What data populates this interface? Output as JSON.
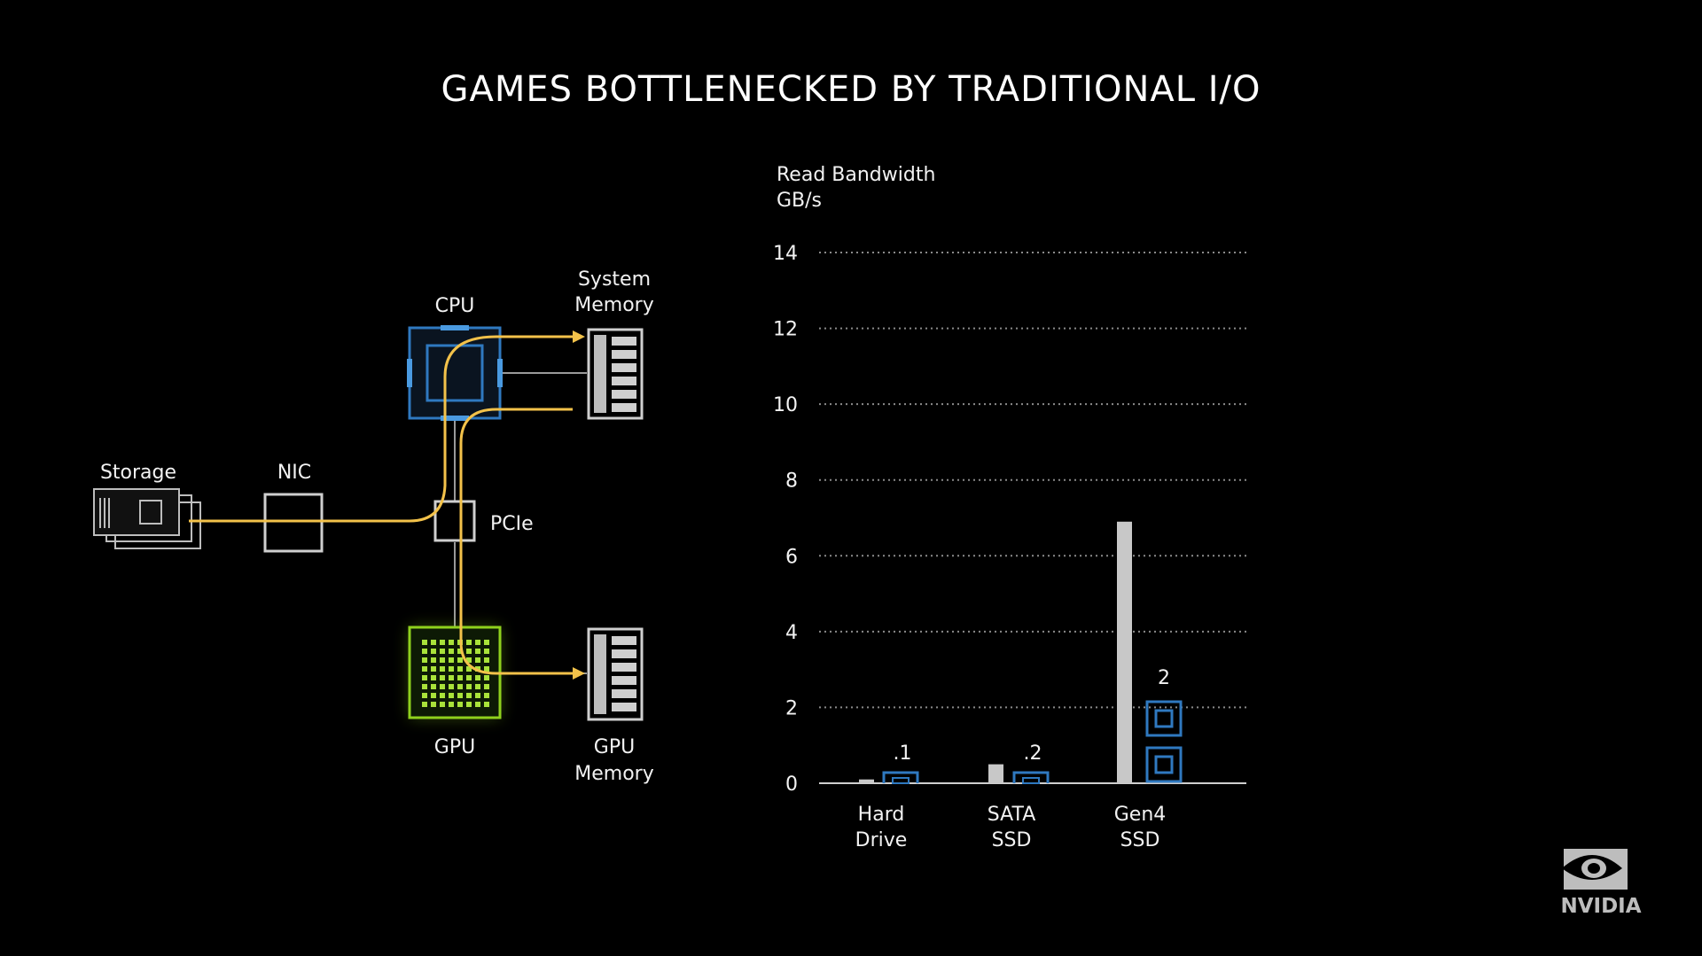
{
  "title": "GAMES BOTTLENECKED BY TRADITIONAL I/O",
  "colors": {
    "background": "#000000",
    "data_path": "#f3c24a",
    "cpu_blue": "#2f79c0",
    "gpu_green": "#8fd11d",
    "bar_gray": "#c8c8c8",
    "cpu_load_blue": "#2f79c0"
  },
  "diagram": {
    "storage_label": "Storage",
    "nic_label": "NIC",
    "cpu_label": "CPU",
    "system_memory_label_1": "System",
    "system_memory_label_2": "Memory",
    "pcie_label": "PCIe",
    "gpu_label": "GPU",
    "gpu_memory_label_1": "GPU",
    "gpu_memory_label_2": "Memory"
  },
  "chart_data": {
    "type": "bar",
    "ylabel_line1": "Read Bandwidth",
    "ylabel_line2": "GB/s",
    "ylim": [
      0,
      14
    ],
    "yticks": [
      0,
      2,
      4,
      6,
      8,
      10,
      12,
      14
    ],
    "grid": true,
    "categories": [
      {
        "line1": "Hard",
        "line2": "Drive"
      },
      {
        "line1": "SATA",
        "line2": "SSD"
      },
      {
        "line1": "Gen4",
        "line2": "SSD"
      }
    ],
    "series": [
      {
        "values": [
          0.1,
          0.5,
          6.9
        ]
      }
    ],
    "cpu_cores": [
      {
        "label": ".1",
        "count": 0.1
      },
      {
        "label": ".2",
        "count": 0.2
      },
      {
        "label": "2",
        "count": 2
      }
    ]
  },
  "logo": {
    "wordmark": "NVIDIA"
  }
}
